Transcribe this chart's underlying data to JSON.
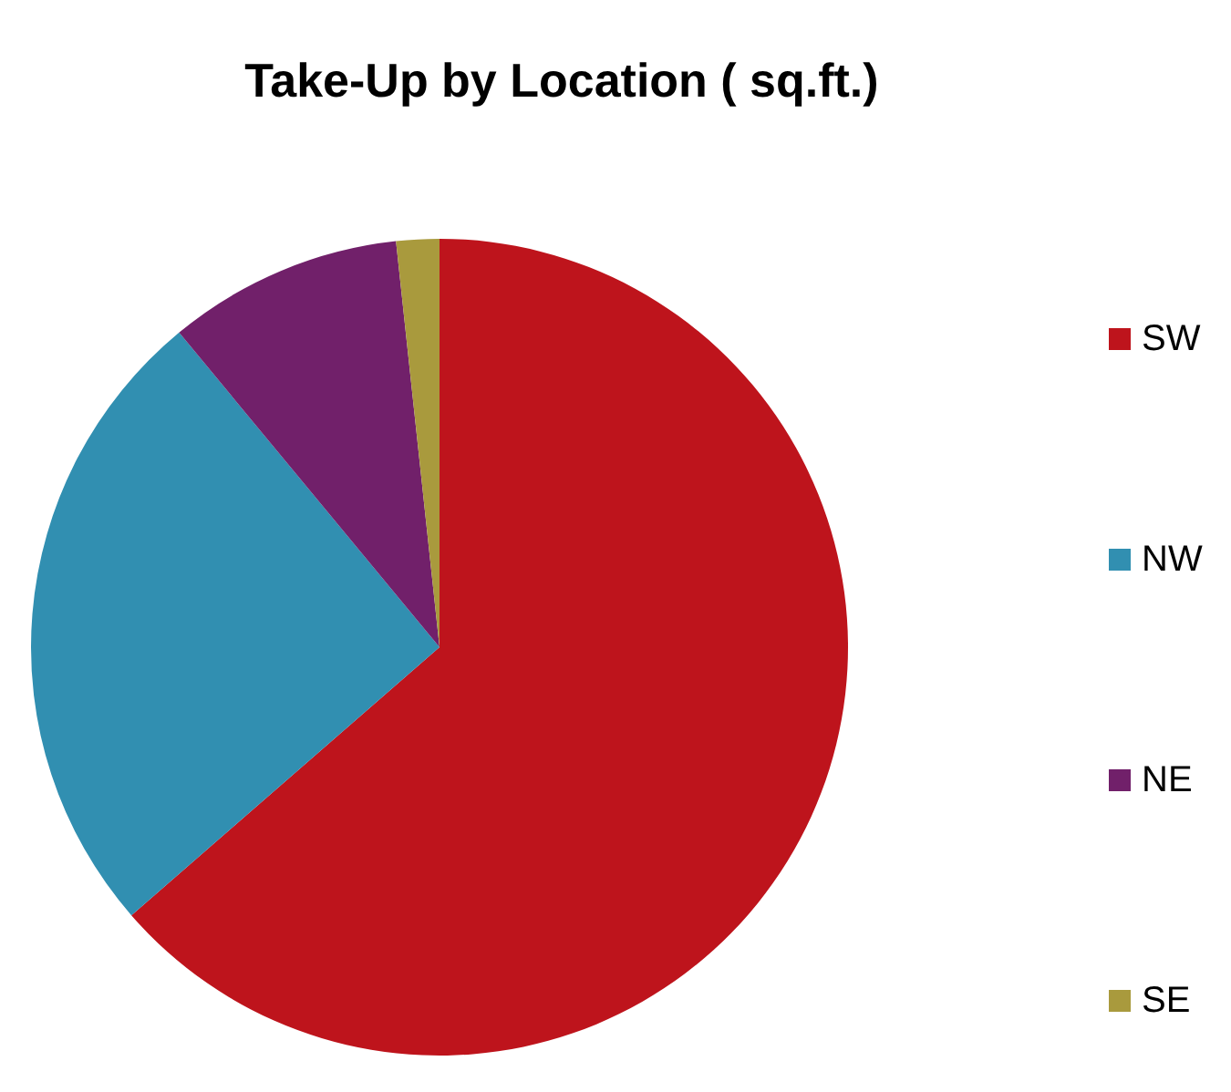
{
  "chart_data": {
    "type": "pie",
    "title": "Take-Up by Location ( sq.ft.)",
    "categories": [
      "SW",
      "NW",
      "NE",
      "SE"
    ],
    "values": [
      63.6,
      25.4,
      9.3,
      1.7
    ],
    "colors": [
      "#be141c",
      "#318fb1",
      "#71206a",
      "#a99a3d"
    ],
    "legend": "right"
  }
}
